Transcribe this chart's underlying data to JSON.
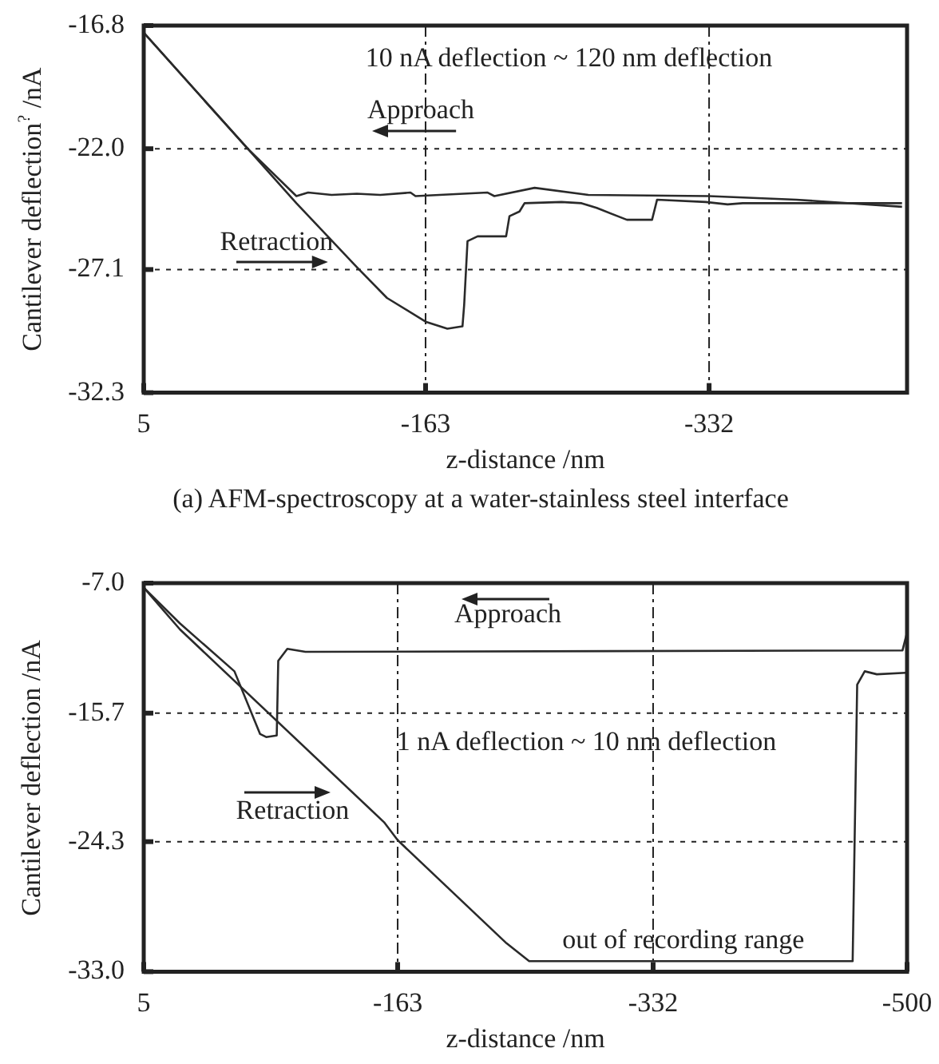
{
  "chart_data": [
    {
      "type": "line",
      "title": "(a) AFM-spectroscopy at a water-stainless steel interface",
      "xlabel": "z-distance /nm",
      "ylabel": "Cantilever deflection$^{?}$ /nA",
      "xlim": [
        5,
        -450
      ],
      "xticks": [
        5,
        -163,
        -332
      ],
      "ylim": [
        -32.3,
        -16.8
      ],
      "yticks": [
        {
          "value": -32.3,
          "label": "-32.3"
        },
        {
          "value": -27.1,
          "label": "-27.1"
        },
        {
          "value": -22,
          "label": "-22.0"
        },
        -16.8
      ],
      "grid": true,
      "marker": "none",
      "line_style": "solid",
      "annotations": [
        "10 nA deflection ~ 120 nm deflection",
        "Approach",
        "Retraction"
      ],
      "series": [
        {
          "color": "#2a2a2a",
          "x": [
            5,
            -57,
            -86,
            -93,
            -107,
            -122,
            -136,
            -154,
            -157,
            -200,
            -204,
            -228,
            -260,
            -332,
            -384,
            -447
          ],
          "values": [
            -17.1,
            -22.0,
            -24.0,
            -23.85,
            -23.95,
            -23.9,
            -23.95,
            -23.85,
            -24.0,
            -23.85,
            -24.0,
            -23.65,
            -23.95,
            -24.0,
            -24.15,
            -24.45
          ]
        },
        {
          "color": "#2a2a2a",
          "x": [
            5,
            -57,
            -86,
            -122,
            -140,
            -163,
            -176,
            -185,
            -186,
            -188,
            -194,
            -211,
            -213,
            -219,
            -222,
            -244,
            -256,
            -265,
            -283,
            -298,
            -301,
            -330,
            -343,
            -352,
            -447
          ],
          "values": [
            -17.1,
            -22.0,
            -24.3,
            -27.0,
            -28.3,
            -29.3,
            -29.6,
            -29.5,
            -28.6,
            -25.9,
            -25.7,
            -25.7,
            -24.85,
            -24.65,
            -24.3,
            -24.25,
            -24.3,
            -24.5,
            -25.0,
            -25.0,
            -24.15,
            -24.25,
            -24.35,
            -24.3,
            -24.3
          ]
        }
      ]
    },
    {
      "type": "line",
      "xlabel": "z-distance /nm",
      "ylabel": "Cantilever deflection /nA",
      "xlim": [
        5,
        -500
      ],
      "xticks": [
        5,
        -163,
        -332,
        -500
      ],
      "ylim": [
        -33,
        -7
      ],
      "yticks": [
        {
          "value": -33,
          "label": "-33.0"
        },
        -24.3,
        -15.7,
        {
          "value": -7,
          "label": "-7.0"
        }
      ],
      "grid": true,
      "marker": "none",
      "line_style": "solid",
      "annotations": [
        "Approach",
        "1 nA deflection ~ 10 nm deflection",
        "Retraction",
        "out of recording range"
      ],
      "series": [
        {
          "color": "#2a2a2a",
          "x": [
            5,
            -19,
            -55,
            -72,
            -76,
            -83,
            -84,
            -90,
            -102,
            -497,
            -500
          ],
          "values": [
            -7.3,
            -9.7,
            -12.9,
            -17.1,
            -17.3,
            -17.2,
            -12.2,
            -11.4,
            -11.6,
            -11.5,
            -10.3
          ]
        },
        {
          "color": "#2a2a2a",
          "x": [
            5,
            -19,
            -154,
            -163,
            -235,
            -250,
            -464,
            -467,
            -472,
            -480,
            -499
          ],
          "values": [
            -7.3,
            -10.1,
            -23.0,
            -24.2,
            -31.1,
            -32.3,
            -32.3,
            -13.8,
            -12.9,
            -13.1,
            -13.0
          ]
        }
      ]
    }
  ]
}
